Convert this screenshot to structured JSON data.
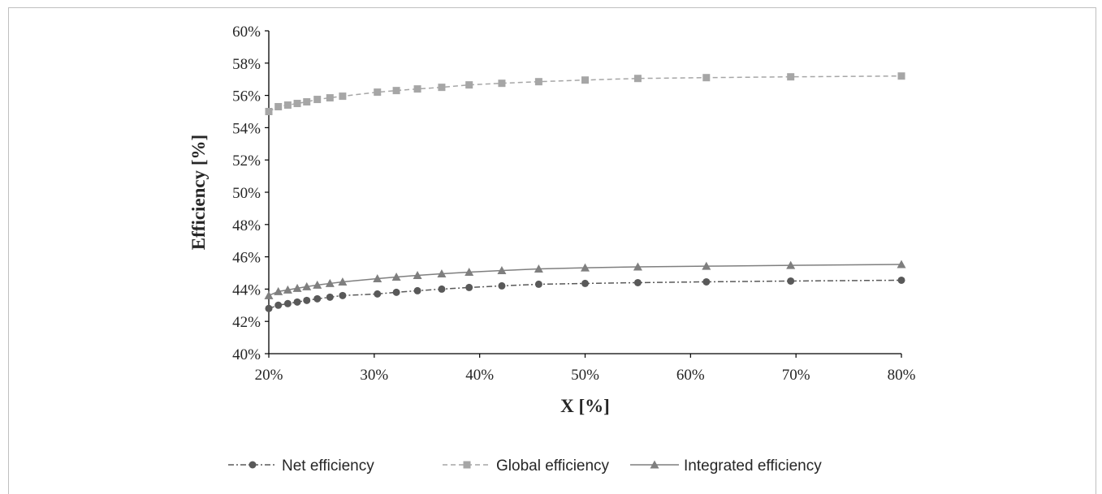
{
  "chart_data": {
    "type": "line",
    "xlabel": "X [%]",
    "ylabel": "Efficiency  [%]",
    "xlim": [
      20,
      80
    ],
    "ylim": [
      40,
      60
    ],
    "x_ticks": [
      "20%",
      "30%",
      "40%",
      "50%",
      "60%",
      "70%",
      "80%"
    ],
    "y_ticks": [
      "40%",
      "42%",
      "44%",
      "46%",
      "48%",
      "50%",
      "52%",
      "54%",
      "56%",
      "58%",
      "60%"
    ],
    "grid": false,
    "legend_position": "bottom",
    "x": [
      20.0,
      20.9,
      21.8,
      22.7,
      23.6,
      24.6,
      25.8,
      27.0,
      30.3,
      32.1,
      34.1,
      36.4,
      39.0,
      42.1,
      45.6,
      50.0,
      55.0,
      61.5,
      69.5,
      80.0
    ],
    "series": [
      {
        "name": "Net efficiency",
        "marker": "circle",
        "line_style": "dash-dot",
        "color": "#595959",
        "values": [
          42.8,
          43.0,
          43.1,
          43.2,
          43.3,
          43.4,
          43.5,
          43.6,
          43.7,
          43.8,
          43.9,
          44.0,
          44.1,
          44.2,
          44.3,
          44.35,
          44.4,
          44.45,
          44.5,
          44.55
        ]
      },
      {
        "name": "Global efficiency",
        "marker": "square",
        "line_style": "dashed",
        "color": "#a6a6a6",
        "values": [
          55.0,
          55.3,
          55.4,
          55.5,
          55.6,
          55.75,
          55.85,
          55.95,
          56.2,
          56.3,
          56.4,
          56.5,
          56.65,
          56.75,
          56.85,
          56.95,
          57.05,
          57.1,
          57.15,
          57.2
        ]
      },
      {
        "name": "Integrated efficiency",
        "marker": "triangle",
        "line_style": "solid",
        "color": "#7f7f7f",
        "values": [
          43.6,
          43.85,
          43.95,
          44.05,
          44.15,
          44.25,
          44.35,
          44.45,
          44.65,
          44.75,
          44.85,
          44.95,
          45.05,
          45.15,
          45.25,
          45.32,
          45.38,
          45.42,
          45.47,
          45.53
        ]
      }
    ]
  }
}
